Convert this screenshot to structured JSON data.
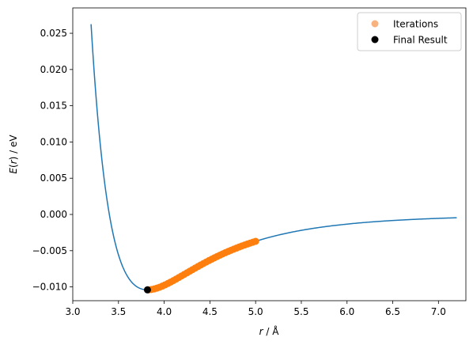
{
  "chart_data": {
    "type": "scatter",
    "xlabel": {
      "var": "r",
      "rest": " / Å"
    },
    "ylabel": {
      "var": "E",
      "open": "(",
      "arg": "r",
      "close": ")",
      "rest": " / eV"
    },
    "xlim": [
      3.0,
      7.3
    ],
    "ylim": [
      -0.0119,
      0.0285
    ],
    "xticks": [
      3.0,
      3.5,
      4.0,
      4.5,
      5.0,
      5.5,
      6.0,
      6.5,
      7.0
    ],
    "xtick_labels": [
      "3.0",
      "3.5",
      "4.0",
      "4.5",
      "5.0",
      "5.5",
      "6.0",
      "6.5",
      "7.0"
    ],
    "yticks": [
      -0.01,
      -0.005,
      0.0,
      0.005,
      0.01,
      0.015,
      0.02,
      0.025
    ],
    "ytick_labels": [
      "−0.010",
      "−0.005",
      "0.000",
      "0.005",
      "0.010",
      "0.015",
      "0.020",
      "0.025"
    ],
    "grid": false,
    "legend_position": "top-right",
    "potential": {
      "type": "line",
      "color": "#1f77b4",
      "epsilon": 0.0104,
      "sigma": 3.4,
      "x_range": [
        3.2,
        7.2
      ]
    },
    "series": [
      {
        "name": "Iterations",
        "type": "scatter",
        "color": "#ff7f0e",
        "legend_color": "#f7b27e",
        "x": [
          5.0,
          4.97,
          4.94,
          4.91,
          4.88,
          4.85,
          4.82,
          4.79,
          4.76,
          4.73,
          4.7,
          4.67,
          4.64,
          4.61,
          4.58,
          4.55,
          4.52,
          4.49,
          4.46,
          4.43,
          4.4,
          4.37,
          4.34,
          4.31,
          4.28,
          4.25,
          4.22,
          4.19,
          4.16,
          4.13,
          4.1,
          4.07,
          4.04,
          4.01,
          3.98,
          3.95,
          3.92,
          3.89,
          3.86,
          3.83
        ]
      },
      {
        "name": "Final Result",
        "type": "scatter",
        "color": "#000000",
        "x": [
          3.817
        ],
        "y": [
          -0.0104
        ]
      }
    ]
  }
}
